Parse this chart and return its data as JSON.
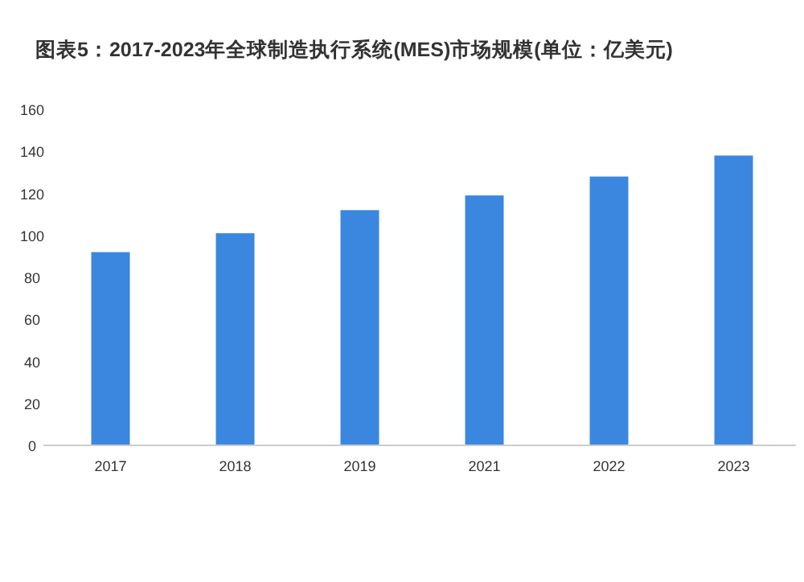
{
  "chart_data": {
    "type": "bar",
    "title": "图表5：2017-2023年全球制造执行系统(MES)市场规模(单位：亿美元)",
    "categories": [
      "2017",
      "2018",
      "2019",
      "2021",
      "2022",
      "2023"
    ],
    "values": [
      92,
      101,
      112,
      119,
      128,
      138
    ],
    "color": "#3b87e0",
    "ylim": [
      0,
      160
    ],
    "yticks": [
      0,
      20,
      40,
      60,
      80,
      100,
      120,
      140,
      160
    ],
    "grid": false
  }
}
